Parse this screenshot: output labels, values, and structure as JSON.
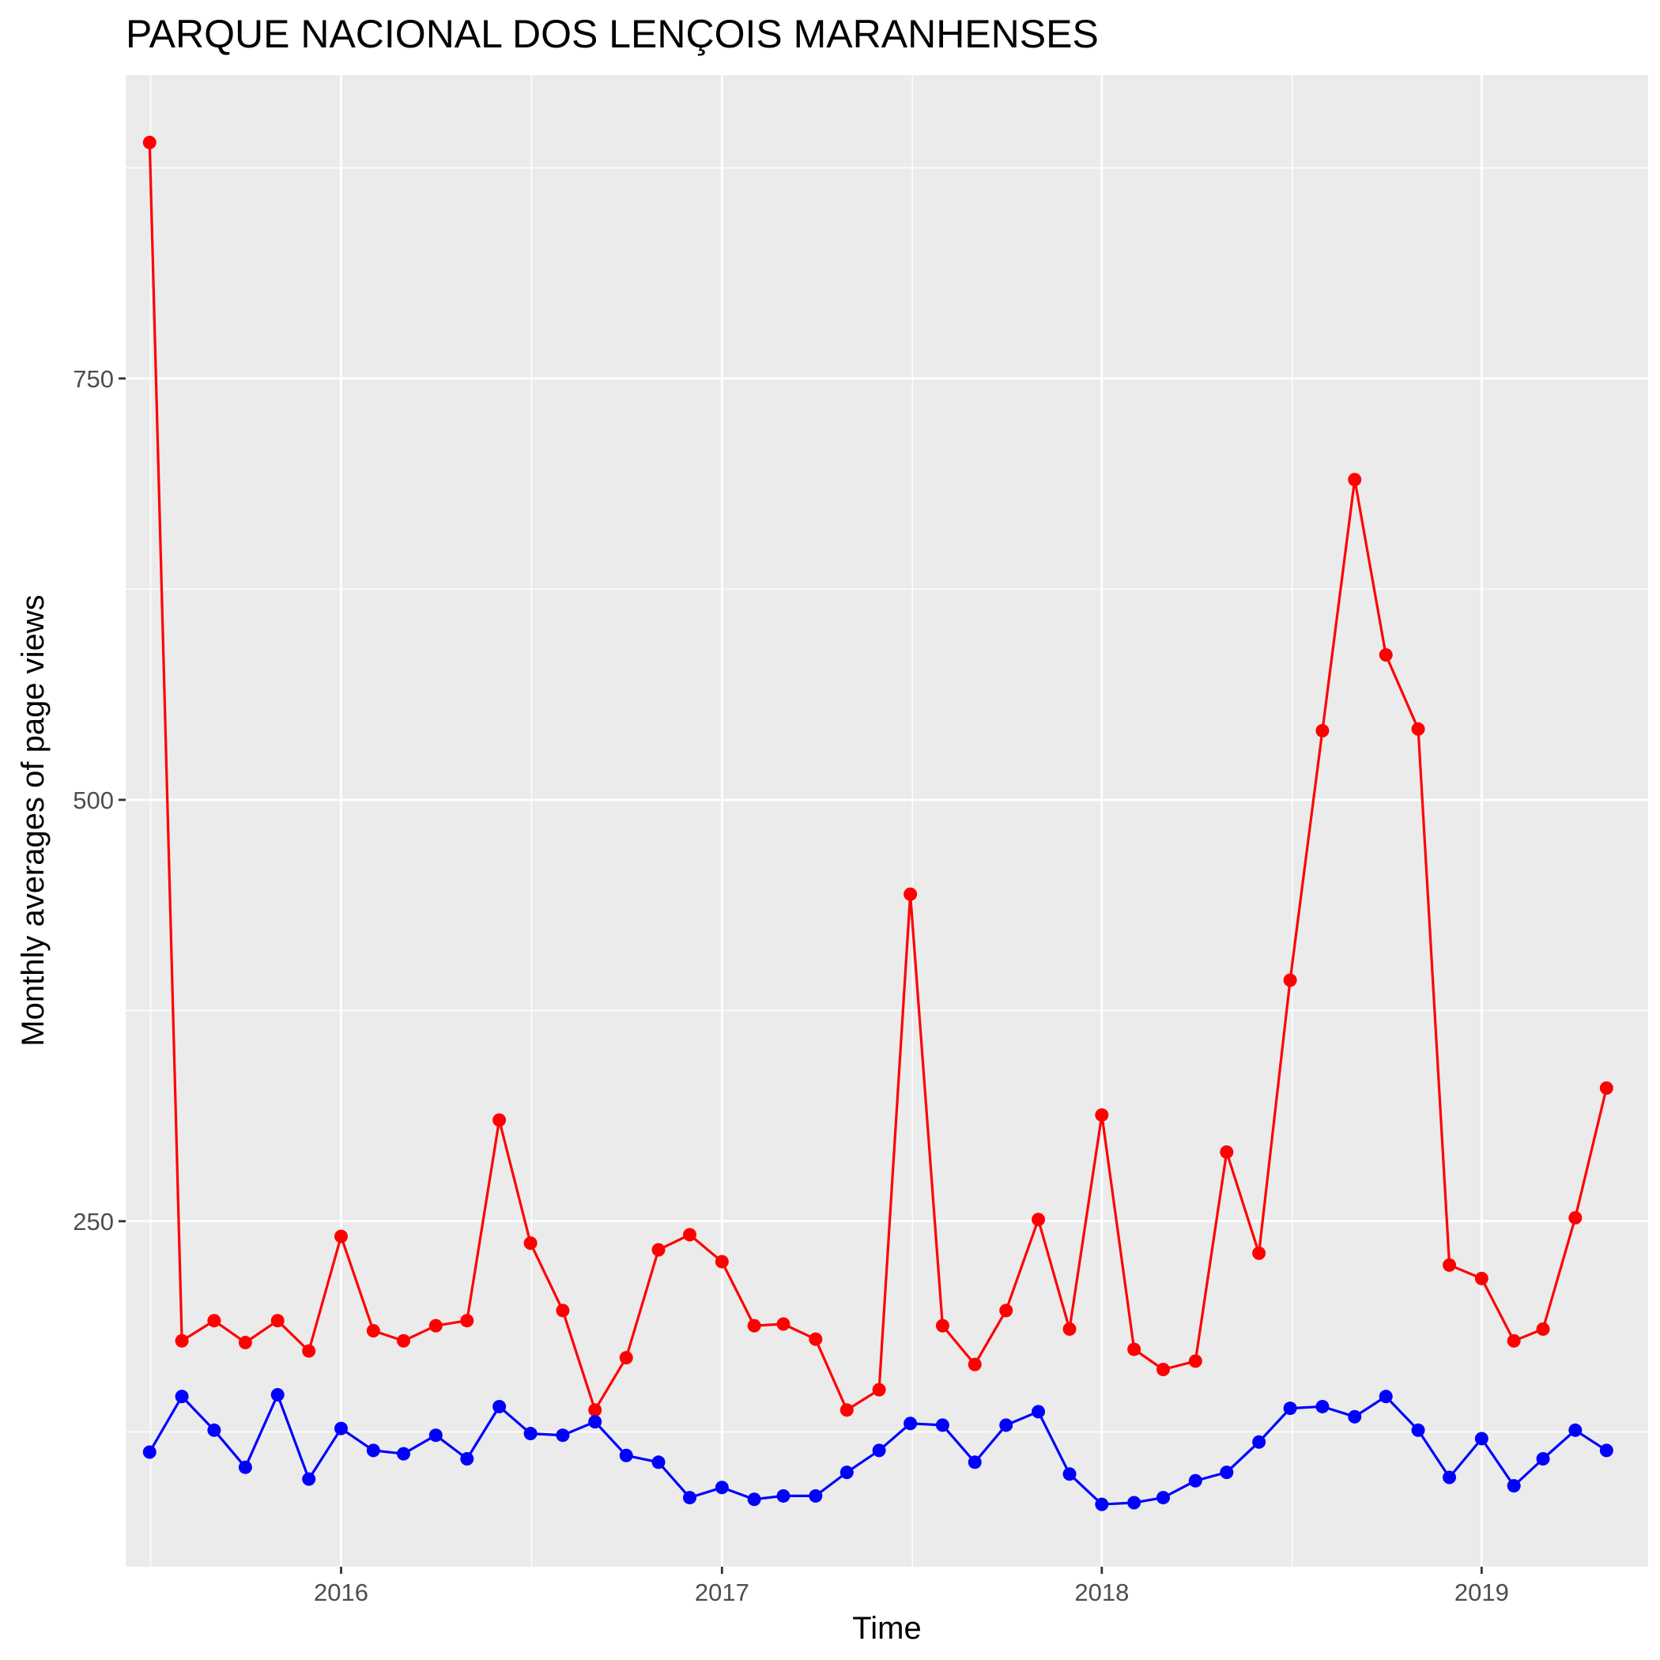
{
  "chart_data": {
    "type": "line",
    "title": "PARQUE NACIONAL DOS LENÇOIS MARANHENSES",
    "xlabel": "Time",
    "ylabel": "Monthly averages of page views",
    "x_ticks": [
      "2016",
      "2017",
      "2018",
      "2019"
    ],
    "y_ticks": [
      250,
      500,
      750
    ],
    "ylim": [
      45,
      930
    ],
    "xlim": [
      "2015-06-08",
      "2019-06-10"
    ],
    "grid": true,
    "colors": {
      "panel": "#ebebeb",
      "grid": "#ffffff",
      "text": "#000000",
      "tick": "#4d4d4d"
    },
    "x": [
      "2015-07-01",
      "2015-08-01",
      "2015-09-01",
      "2015-10-01",
      "2015-11-01",
      "2015-12-01",
      "2016-01-01",
      "2016-02-01",
      "2016-03-01",
      "2016-04-01",
      "2016-05-01",
      "2016-06-01",
      "2016-07-01",
      "2016-08-01",
      "2016-09-01",
      "2016-10-01",
      "2016-11-01",
      "2016-12-01",
      "2017-01-01",
      "2017-02-01",
      "2017-03-01",
      "2017-04-01",
      "2017-05-01",
      "2017-06-01",
      "2017-07-01",
      "2017-08-01",
      "2017-09-01",
      "2017-10-01",
      "2017-11-01",
      "2017-12-01",
      "2018-01-01",
      "2018-02-01",
      "2018-03-01",
      "2018-04-01",
      "2018-05-01",
      "2018-06-01",
      "2018-07-01",
      "2018-08-01",
      "2018-09-01",
      "2018-10-01",
      "2018-11-01",
      "2018-12-01",
      "2019-01-01",
      "2019-02-01",
      "2019-03-01",
      "2019-04-01",
      "2019-05-01"
    ],
    "series": [
      {
        "color": "#ff0000",
        "values": [
          890,
          179,
          191,
          178,
          191,
          173,
          241,
          185,
          179,
          188,
          191,
          310,
          237,
          197,
          138,
          169,
          233,
          242,
          226,
          188,
          189,
          180,
          138,
          150,
          444,
          188,
          165,
          197,
          251,
          186,
          313,
          174,
          162,
          167,
          291,
          231,
          393,
          541,
          690,
          586,
          542,
          224,
          216,
          179,
          186,
          252,
          329
        ]
      },
      {
        "color": "#0000ff",
        "values": [
          113,
          146,
          126,
          104,
          147,
          97,
          127,
          114,
          112,
          123,
          109,
          140,
          124,
          123,
          131,
          111,
          107,
          86,
          92,
          85,
          87,
          87,
          101,
          114,
          130,
          129,
          107,
          129,
          137,
          100,
          82,
          83,
          86,
          96,
          101,
          119,
          139,
          140,
          134,
          146,
          126,
          98,
          121,
          93,
          109,
          126,
          114
        ]
      }
    ]
  }
}
